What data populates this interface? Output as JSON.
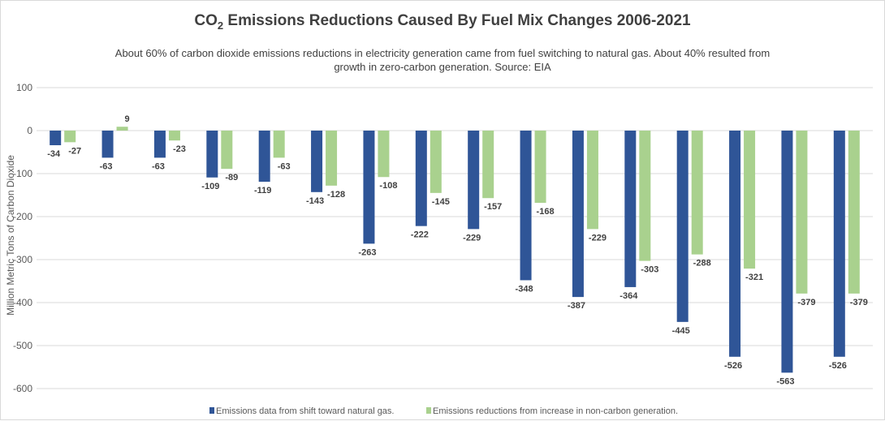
{
  "chart_data": {
    "type": "bar",
    "title": "CO2 Emissions Reductions Caused By Fuel Mix Changes 2006-2021",
    "title_parts": {
      "pre": "CO",
      "sub": "2",
      "post": " Emissions Reductions Caused By Fuel Mix Changes 2006-2021"
    },
    "subtitle_lines": [
      "About 60% of carbon dioxide emissions reductions in electricity generation came from fuel switching to natural gas. About 40% resulted from",
      "growth in zero-carbon generation. Source: EIA"
    ],
    "xlabel": "",
    "ylabel": "Million Metric Tons of Carbon Dioxide",
    "ylim": [
      -600,
      100
    ],
    "yticks": [
      100,
      0,
      -100,
      -200,
      -300,
      -400,
      -500,
      -600
    ],
    "grid": true,
    "legend_position": "bottom",
    "series": [
      {
        "name": "Emissions data from shift toward natural gas.",
        "color": "#2f5597",
        "values": [
          -34,
          -63,
          -63,
          -109,
          -119,
          -143,
          -263,
          -222,
          -229,
          -348,
          -387,
          -364,
          -445,
          -526,
          -563,
          -526
        ]
      },
      {
        "name": "Emissions reductions from increase in non-carbon generation.",
        "color": "#a9d18e",
        "values": [
          -27,
          9,
          -23,
          -89,
          -63,
          -128,
          -108,
          -145,
          -157,
          -168,
          -229,
          -303,
          -288,
          -321,
          -379,
          -379
        ]
      }
    ]
  }
}
